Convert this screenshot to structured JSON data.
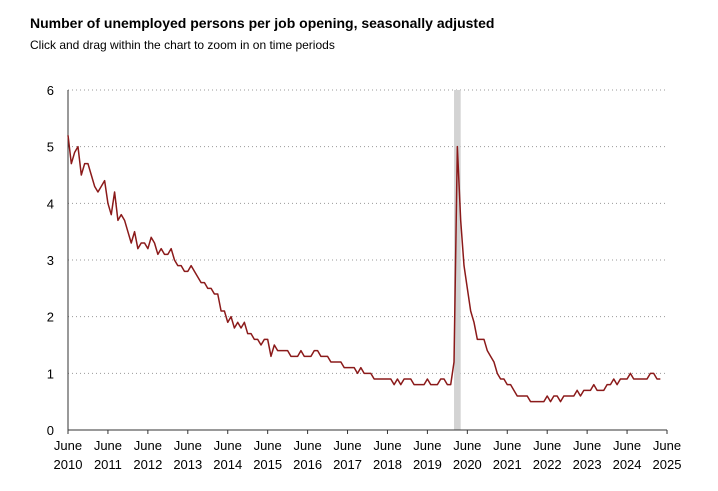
{
  "chart_data": {
    "type": "line",
    "title": "Number of unemployed persons per job opening, seasonally adjusted",
    "subtitle": "Click and drag within the chart to zoom in on time periods",
    "xlabel": "",
    "ylabel": "",
    "ylim": [
      0,
      6
    ],
    "yticks": [
      0,
      1,
      2,
      3,
      4,
      5,
      6
    ],
    "xlim": [
      "2010-06",
      "2025-06"
    ],
    "xticks": [
      {
        "x": "2010-06",
        "month": "June",
        "year": "2010"
      },
      {
        "x": "2011-06",
        "month": "June",
        "year": "2011"
      },
      {
        "x": "2012-06",
        "month": "June",
        "year": "2012"
      },
      {
        "x": "2013-06",
        "month": "June",
        "year": "2013"
      },
      {
        "x": "2014-06",
        "month": "June",
        "year": "2014"
      },
      {
        "x": "2015-06",
        "month": "June",
        "year": "2015"
      },
      {
        "x": "2016-06",
        "month": "June",
        "year": "2016"
      },
      {
        "x": "2017-06",
        "month": "June",
        "year": "2017"
      },
      {
        "x": "2018-06",
        "month": "June",
        "year": "2018"
      },
      {
        "x": "2019-06",
        "month": "June",
        "year": "2019"
      },
      {
        "x": "2020-06",
        "month": "June",
        "year": "2020"
      },
      {
        "x": "2021-06",
        "month": "June",
        "year": "2021"
      },
      {
        "x": "2022-06",
        "month": "June",
        "year": "2022"
      },
      {
        "x": "2023-06",
        "month": "June",
        "year": "2023"
      },
      {
        "x": "2024-06",
        "month": "June",
        "year": "2024"
      },
      {
        "x": "2025-06",
        "month": "June",
        "year": "2025"
      }
    ],
    "grid": "horizontal dotted",
    "recession_shading": {
      "start": "2020-02",
      "end": "2020-04",
      "color": "#d3d3d3"
    },
    "series": [
      {
        "color": "#8b1a1a",
        "start": "2010-06",
        "frequency": "monthly",
        "values": [
          5.2,
          4.7,
          4.9,
          5.0,
          4.5,
          4.7,
          4.7,
          4.5,
          4.3,
          4.2,
          4.3,
          4.4,
          4.0,
          3.8,
          4.2,
          3.7,
          3.8,
          3.7,
          3.5,
          3.3,
          3.5,
          3.2,
          3.3,
          3.3,
          3.2,
          3.4,
          3.3,
          3.1,
          3.2,
          3.1,
          3.1,
          3.2,
          3.0,
          2.9,
          2.9,
          2.8,
          2.8,
          2.9,
          2.8,
          2.7,
          2.6,
          2.6,
          2.5,
          2.5,
          2.4,
          2.4,
          2.1,
          2.1,
          1.9,
          2.0,
          1.8,
          1.9,
          1.8,
          1.9,
          1.7,
          1.7,
          1.6,
          1.6,
          1.5,
          1.6,
          1.6,
          1.3,
          1.5,
          1.4,
          1.4,
          1.4,
          1.4,
          1.3,
          1.3,
          1.3,
          1.4,
          1.3,
          1.3,
          1.3,
          1.4,
          1.4,
          1.3,
          1.3,
          1.3,
          1.2,
          1.2,
          1.2,
          1.2,
          1.1,
          1.1,
          1.1,
          1.1,
          1.0,
          1.1,
          1.0,
          1.0,
          1.0,
          0.9,
          0.9,
          0.9,
          0.9,
          0.9,
          0.9,
          0.8,
          0.9,
          0.8,
          0.9,
          0.9,
          0.9,
          0.8,
          0.8,
          0.8,
          0.8,
          0.9,
          0.8,
          0.8,
          0.8,
          0.9,
          0.9,
          0.8,
          0.8,
          1.2,
          5.0,
          3.7,
          2.9,
          2.5,
          2.1,
          1.9,
          1.6,
          1.6,
          1.6,
          1.4,
          1.3,
          1.2,
          1.0,
          0.9,
          0.9,
          0.8,
          0.8,
          0.7,
          0.6,
          0.6,
          0.6,
          0.6,
          0.5,
          0.5,
          0.5,
          0.5,
          0.5,
          0.6,
          0.5,
          0.6,
          0.6,
          0.5,
          0.6,
          0.6,
          0.6,
          0.6,
          0.7,
          0.6,
          0.7,
          0.7,
          0.7,
          0.8,
          0.7,
          0.7,
          0.7,
          0.8,
          0.8,
          0.9,
          0.8,
          0.9,
          0.9,
          0.9,
          1.0,
          0.9,
          0.9,
          0.9,
          0.9,
          0.9,
          1.0,
          1.0,
          0.9,
          0.9
        ]
      }
    ]
  }
}
